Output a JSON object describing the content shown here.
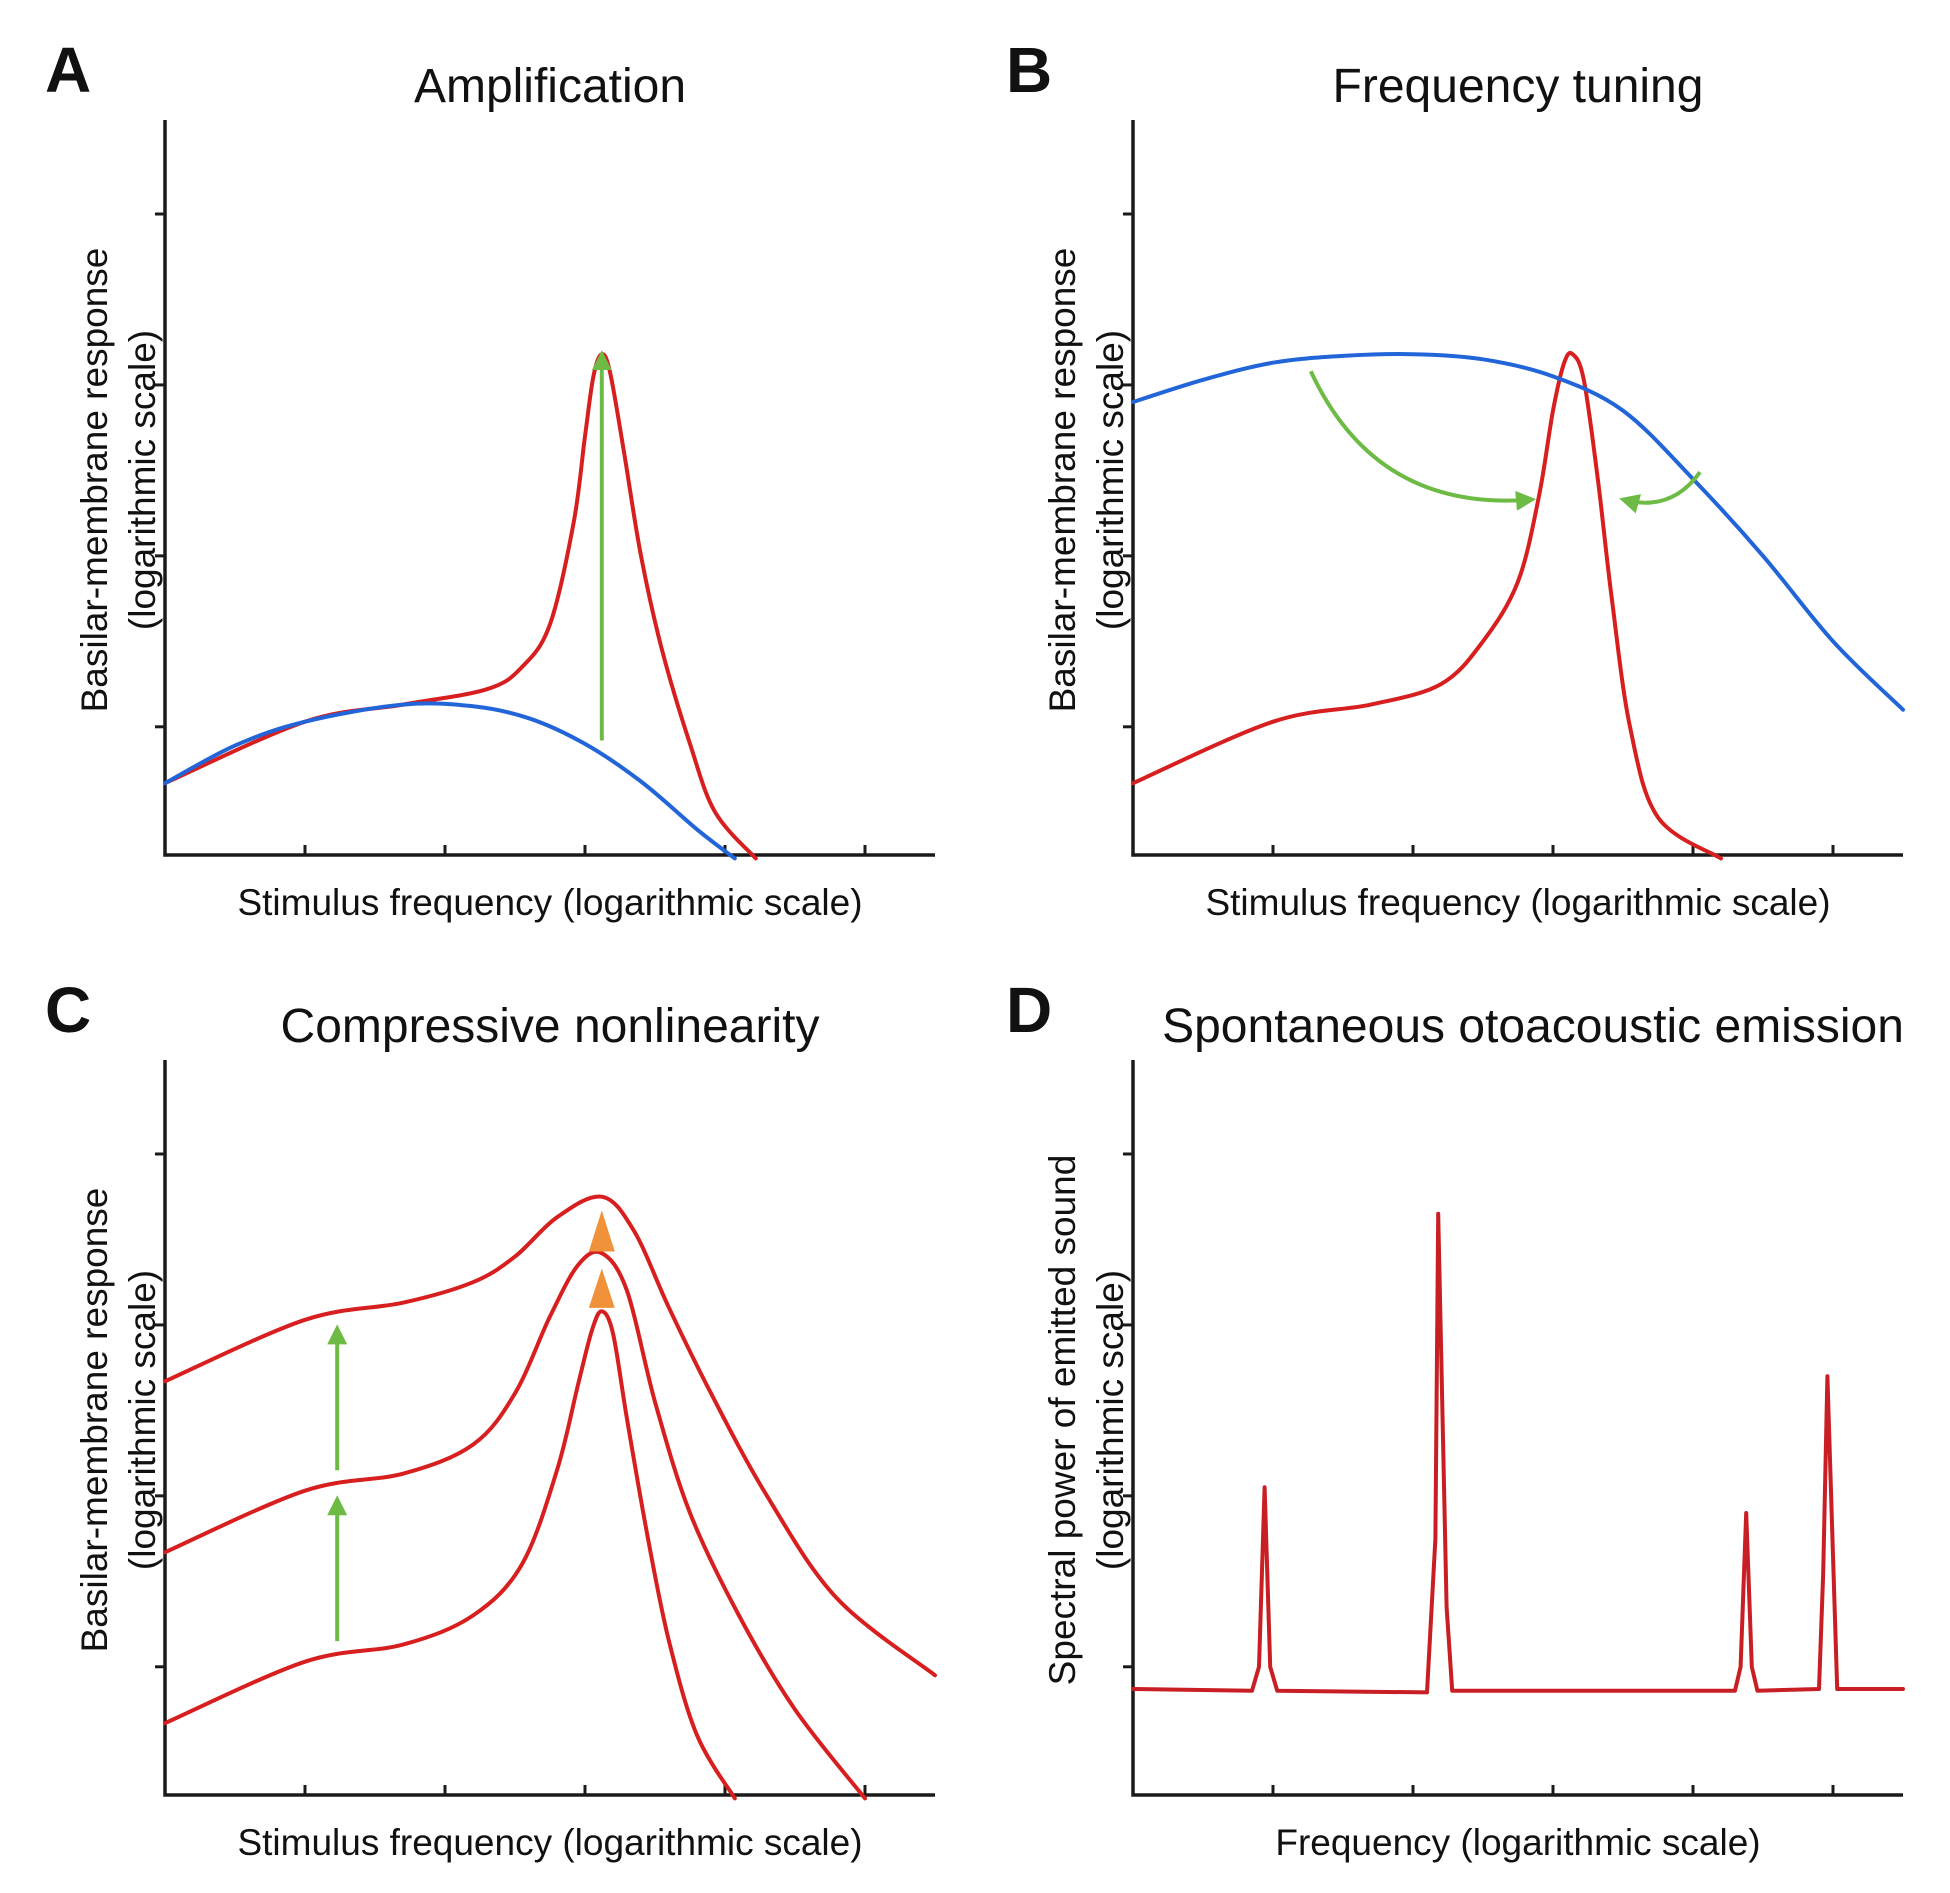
{
  "colors": {
    "active_response": "#d81f1f",
    "passive_response": "#2265d8",
    "amplification_arrow": "#6dbb45",
    "compression_arrow": "#f0923a",
    "emission": "#c81e24",
    "axis": "#1a1a1a"
  },
  "chart_data": [
    {
      "panel": "A",
      "type": "line",
      "title": "Amplification",
      "xlabel": "Stimulus frequency (logarithmic scale)",
      "ylabel": "Basilar-membrane response",
      "ylabel_unit": "(logarithmic scale)",
      "xlim": [
        0,
        5.5
      ],
      "ylim": [
        0,
        4.3
      ],
      "x_ticks": [
        1,
        2,
        3,
        4,
        5
      ],
      "y_ticks": [
        0.75,
        1.75,
        2.75,
        3.75
      ],
      "series": [
        {
          "role": "active",
          "color_key": "active_response",
          "points": [
            [
              0,
              0.42
            ],
            [
              1,
              0.78
            ],
            [
              1.7,
              0.88
            ],
            [
              2.3,
              0.97
            ],
            [
              2.55,
              1.1
            ],
            [
              2.75,
              1.35
            ],
            [
              2.92,
              1.95
            ],
            [
              3.0,
              2.45
            ],
            [
              3.06,
              2.8
            ],
            [
              3.12,
              2.93
            ],
            [
              3.18,
              2.82
            ],
            [
              3.28,
              2.35
            ],
            [
              3.4,
              1.75
            ],
            [
              3.55,
              1.2
            ],
            [
              3.75,
              0.65
            ],
            [
              3.93,
              0.25
            ],
            [
              4.22,
              -0.02
            ]
          ]
        },
        {
          "role": "passive",
          "color_key": "passive_response",
          "points": [
            [
              0,
              0.42
            ],
            [
              0.5,
              0.64
            ],
            [
              1,
              0.78
            ],
            [
              1.7,
              0.88
            ],
            [
              2.2,
              0.87
            ],
            [
              2.6,
              0.8
            ],
            [
              3.0,
              0.65
            ],
            [
              3.4,
              0.43
            ],
            [
              3.8,
              0.15
            ],
            [
              4.07,
              -0.02
            ]
          ]
        }
      ],
      "arrows": [
        {
          "color_key": "amplification_arrow",
          "from": [
            3.12,
            0.67
          ],
          "to": [
            3.12,
            2.93
          ]
        }
      ]
    },
    {
      "panel": "B",
      "type": "line",
      "title": "Frequency tuning",
      "xlabel": "Stimulus frequency (logarithmic scale)",
      "ylabel": "Basilar-membrane response",
      "ylabel_unit": "(logarithmic scale)",
      "xlim": [
        0,
        5.5
      ],
      "ylim": [
        0,
        4.3
      ],
      "x_ticks": [
        1,
        2,
        3,
        4,
        5
      ],
      "y_ticks": [
        0.75,
        1.75,
        2.75,
        3.75
      ],
      "series": [
        {
          "role": "active",
          "color_key": "active_response",
          "points": [
            [
              0,
              0.42
            ],
            [
              1,
              0.78
            ],
            [
              1.7,
              0.88
            ],
            [
              2.2,
              1.0
            ],
            [
              2.5,
              1.25
            ],
            [
              2.75,
              1.6
            ],
            [
              2.9,
              2.1
            ],
            [
              3.0,
              2.6
            ],
            [
              3.08,
              2.88
            ],
            [
              3.14,
              2.93
            ],
            [
              3.22,
              2.78
            ],
            [
              3.32,
              2.2
            ],
            [
              3.42,
              1.5
            ],
            [
              3.55,
              0.75
            ],
            [
              3.75,
              0.22
            ],
            [
              4.2,
              -0.02
            ]
          ]
        },
        {
          "role": "passive",
          "color_key": "passive_response",
          "points": [
            [
              0,
              2.65
            ],
            [
              0.5,
              2.78
            ],
            [
              1.0,
              2.88
            ],
            [
              1.5,
              2.92
            ],
            [
              2.0,
              2.93
            ],
            [
              2.5,
              2.9
            ],
            [
              3.0,
              2.8
            ],
            [
              3.5,
              2.6
            ],
            [
              4.0,
              2.2
            ],
            [
              4.5,
              1.75
            ],
            [
              5.0,
              1.25
            ],
            [
              5.5,
              0.85
            ]
          ]
        }
      ],
      "arrows": [
        {
          "color_key": "amplification_arrow",
          "from": [
            1.27,
            2.83
          ],
          "to": [
            2.85,
            2.08
          ],
          "curved": true
        },
        {
          "color_key": "amplification_arrow",
          "from": [
            4.05,
            2.24
          ],
          "to": [
            3.5,
            2.08
          ],
          "curved": true
        }
      ]
    },
    {
      "panel": "C",
      "type": "line",
      "title": "Compressive nonlinearity",
      "xlabel": "Stimulus frequency (logarithmic scale)",
      "ylabel": "Basilar-membrane response",
      "ylabel_unit": "(logarithmic scale)",
      "xlim": [
        0,
        5.5
      ],
      "ylim": [
        0,
        4.3
      ],
      "x_ticks": [
        1,
        2,
        3,
        4,
        5
      ],
      "y_ticks": [
        0.75,
        1.75,
        2.75,
        3.75
      ],
      "series": [
        {
          "role": "low level",
          "color_key": "active_response",
          "points": [
            [
              0,
              0.42
            ],
            [
              1,
              0.78
            ],
            [
              1.7,
              0.88
            ],
            [
              2.2,
              1.05
            ],
            [
              2.55,
              1.35
            ],
            [
              2.8,
              1.9
            ],
            [
              2.95,
              2.4
            ],
            [
              3.05,
              2.72
            ],
            [
              3.12,
              2.83
            ],
            [
              3.2,
              2.7
            ],
            [
              3.3,
              2.2
            ],
            [
              3.45,
              1.5
            ],
            [
              3.6,
              0.9
            ],
            [
              3.8,
              0.35
            ],
            [
              4.07,
              -0.02
            ]
          ]
        },
        {
          "role": "medium level",
          "color_key": "active_response",
          "points": [
            [
              0,
              1.42
            ],
            [
              1,
              1.78
            ],
            [
              1.7,
              1.88
            ],
            [
              2.2,
              2.05
            ],
            [
              2.5,
              2.35
            ],
            [
              2.75,
              2.8
            ],
            [
              2.95,
              3.1
            ],
            [
              3.12,
              3.17
            ],
            [
              3.3,
              2.95
            ],
            [
              3.5,
              2.3
            ],
            [
              3.75,
              1.65
            ],
            [
              4.1,
              1.05
            ],
            [
              4.5,
              0.5
            ],
            [
              5.0,
              -0.02
            ]
          ]
        },
        {
          "role": "high level",
          "color_key": "active_response",
          "points": [
            [
              0,
              2.42
            ],
            [
              1,
              2.78
            ],
            [
              1.7,
              2.88
            ],
            [
              2.2,
              3.0
            ],
            [
              2.5,
              3.15
            ],
            [
              2.8,
              3.38
            ],
            [
              3.12,
              3.5
            ],
            [
              3.35,
              3.3
            ],
            [
              3.6,
              2.85
            ],
            [
              3.9,
              2.35
            ],
            [
              4.3,
              1.75
            ],
            [
              4.8,
              1.15
            ],
            [
              5.5,
              0.7
            ]
          ]
        }
      ],
      "arrows": [
        {
          "color_key": "amplification_arrow",
          "from": [
            1.23,
            0.9
          ],
          "to": [
            1.23,
            1.73
          ]
        },
        {
          "color_key": "amplification_arrow",
          "from": [
            1.23,
            1.9
          ],
          "to": [
            1.23,
            2.73
          ]
        },
        {
          "color_key": "compression_arrow",
          "from": [
            3.12,
            2.85
          ],
          "to": [
            3.12,
            3.08
          ],
          "head_only": true
        },
        {
          "color_key": "compression_arrow",
          "from": [
            3.12,
            3.18
          ],
          "to": [
            3.12,
            3.42
          ],
          "head_only": true
        }
      ]
    },
    {
      "panel": "D",
      "type": "line",
      "title": "Spontaneous otoacoustic emission",
      "xlabel": "Frequency (logarithmic scale)",
      "ylabel": "Spectral power of emitted sound",
      "ylabel_unit": "(logarithmic scale)",
      "xlim": [
        0,
        5.5
      ],
      "ylim": [
        0,
        4.3
      ],
      "x_ticks": [
        1,
        2,
        3,
        4,
        5
      ],
      "y_ticks": [
        0.75,
        1.75,
        2.75,
        3.75
      ],
      "series": [
        {
          "role": "emission spectrum",
          "color_key": "emission",
          "points": [
            [
              0,
              0.62
            ],
            [
              0.85,
              0.61
            ],
            [
              0.9,
              0.75
            ],
            [
              0.94,
              1.8
            ],
            [
              0.98,
              0.75
            ],
            [
              1.03,
              0.61
            ],
            [
              2.1,
              0.6
            ],
            [
              2.16,
              1.5
            ],
            [
              2.18,
              3.4
            ],
            [
              2.24,
              1.1
            ],
            [
              2.28,
              0.61
            ],
            [
              4.3,
              0.61
            ],
            [
              4.34,
              0.75
            ],
            [
              4.38,
              1.65
            ],
            [
              4.42,
              0.75
            ],
            [
              4.46,
              0.61
            ],
            [
              4.9,
              0.62
            ],
            [
              4.93,
              1.3
            ],
            [
              4.96,
              2.45
            ],
            [
              5.0,
              1.4
            ],
            [
              5.03,
              0.62
            ],
            [
              5.5,
              0.62
            ]
          ]
        }
      ],
      "arrows": []
    }
  ]
}
